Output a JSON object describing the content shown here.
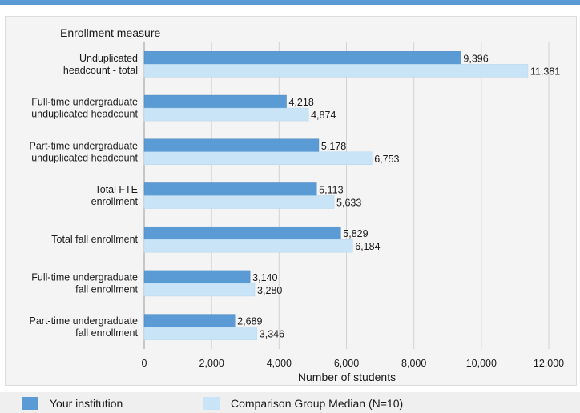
{
  "chart_data": {
    "type": "bar",
    "orientation": "horizontal",
    "ylabel": "Enrollment measure",
    "xlabel": "Number of students",
    "xlim": [
      0,
      12000
    ],
    "xticks": [
      0,
      2000,
      4000,
      6000,
      8000,
      10000,
      12000
    ],
    "xtick_labels": [
      "0",
      "2,000",
      "4,000",
      "6,000",
      "8,000",
      "10,000",
      "12,000"
    ],
    "grid": true,
    "legend_position": "bottom",
    "categories": [
      [
        "Unduplicated",
        "headcount - total"
      ],
      [
        "Full-time undergraduate",
        "unduplicated headcount"
      ],
      [
        "Part-time undergraduate",
        "unduplicated headcount"
      ],
      [
        "Total FTE",
        "enrollment"
      ],
      [
        "Total fall enrollment"
      ],
      [
        "Full-time undergraduate",
        "fall enrollment"
      ],
      [
        "Part-time undergraduate",
        "fall enrollment"
      ]
    ],
    "series": [
      {
        "name": "Your institution",
        "color": "#5b9bd5",
        "values": [
          9396,
          4218,
          5178,
          5113,
          5829,
          3140,
          2689
        ],
        "labels": [
          "9,396",
          "4,218",
          "5,178",
          "5,113",
          "5,829",
          "3,140",
          "2,689"
        ]
      },
      {
        "name": "Comparison Group Median (N=10)",
        "color": "#c9e4f7",
        "values": [
          11381,
          4874,
          6753,
          5633,
          6184,
          3280,
          3346
        ],
        "labels": [
          "11,381",
          "4,874",
          "6,753",
          "5,633",
          "6,184",
          "3,280",
          "3,346"
        ]
      }
    ]
  }
}
